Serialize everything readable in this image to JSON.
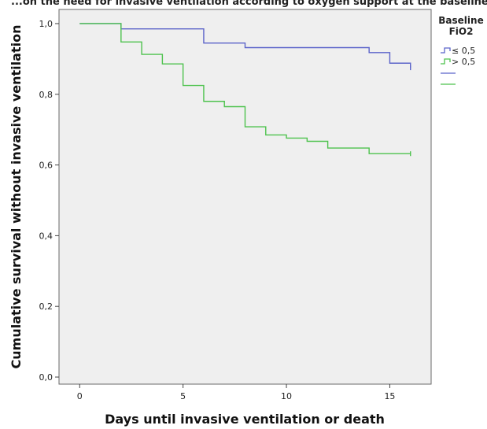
{
  "chart_data": {
    "type": "line",
    "subtype": "step",
    "title_partial": "...on the need for invasive ventilation according to oxygen support at the baseline",
    "xlabel": "Days until invasive ventilation or death",
    "ylabel": "Cumulative survival without invasive ventilation",
    "xlim": [
      -1,
      17
    ],
    "ylim": [
      -0.02,
      1.04
    ],
    "xticks": [
      0,
      5,
      10,
      15
    ],
    "xtick_labels": [
      "0",
      "5",
      "10",
      "15"
    ],
    "yticks": [
      0.0,
      0.2,
      0.4,
      0.6,
      0.8,
      1.0
    ],
    "ytick_labels": [
      "0,0",
      "0,2",
      "0,4",
      "0,6",
      "0,8",
      "1,0"
    ],
    "grid": false,
    "plot_background": "#efefef",
    "legend": {
      "title": [
        "Baseline",
        "FiO2"
      ],
      "placement": "right",
      "entries": [
        "≤ 0,5",
        "> 0,5"
      ]
    },
    "series": [
      {
        "name": "≤ 0,5",
        "color": "#5b63c9",
        "x": [
          0,
          2,
          6,
          8,
          14,
          15,
          16
        ],
        "y": [
          1.0,
          0.985,
          0.945,
          0.932,
          0.918,
          0.888,
          0.875
        ]
      },
      {
        "name": "> 0,5",
        "color": "#4dc24d",
        "x": [
          0,
          2,
          3,
          4,
          5,
          6,
          7,
          8,
          9,
          10,
          11,
          12,
          14,
          16
        ],
        "y": [
          1.0,
          0.948,
          0.913,
          0.886,
          0.825,
          0.78,
          0.765,
          0.708,
          0.685,
          0.676,
          0.667,
          0.648,
          0.632,
          0.632
        ]
      }
    ]
  }
}
